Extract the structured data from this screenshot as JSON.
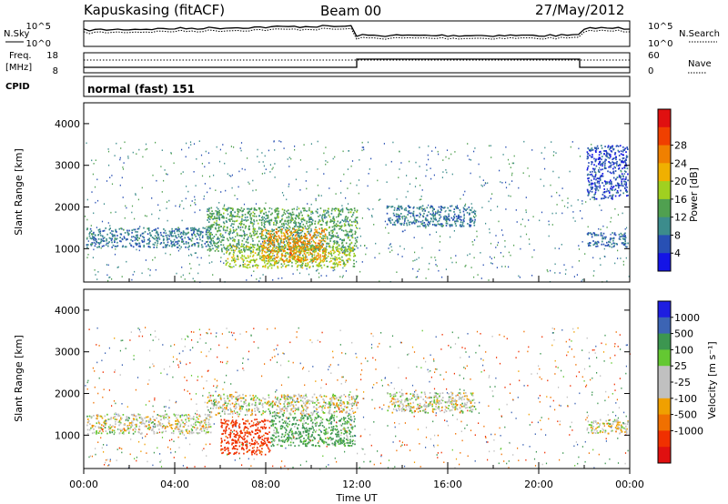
{
  "header": {
    "station": "Kapuskasing (fitACF)",
    "beam": "Beam 00",
    "date": "27/May/2012"
  },
  "summary": {
    "nsky_label": "N.Sky",
    "nsearch_label": "N.Search",
    "freq_label_line1": "Freq.",
    "freq_label_line2": "[MHz]",
    "nave_label": "Nave",
    "cpid_label": "CPID",
    "cpid_text": "normal (fast) 151",
    "noise_ticks_left": [
      "10^5",
      "10^0"
    ],
    "noise_ticks_right": [
      "10^5",
      "10^0"
    ],
    "freq_ticks_left": [
      "18",
      "8"
    ],
    "freq_ticks_right": [
      "60",
      "0"
    ]
  },
  "chart_data": [
    {
      "type": "heatmap",
      "panel": "power",
      "ylabel": "Slant Range [km]",
      "ylim": [
        200,
        4500
      ],
      "yticks": [
        "1000",
        "2000",
        "3000",
        "4000"
      ],
      "colorbar": {
        "label": "Power [dB]",
        "ticks": [
          "4",
          "8",
          "12",
          "16",
          "20",
          "24",
          "28"
        ],
        "colors": [
          "#1414e6",
          "#2850b4",
          "#3c8c8c",
          "#50a050",
          "#a0d020",
          "#f0b000",
          "#f08000",
          "#f04000",
          "#e01010"
        ]
      },
      "x": [
        0,
        24
      ],
      "regions": [
        {
          "t0": 0.1,
          "t1": 5.6,
          "r0": 1050,
          "r1": 1520,
          "level": 6
        },
        {
          "t0": 5.4,
          "t1": 12.0,
          "r0": 950,
          "r1": 2000,
          "level": 10
        },
        {
          "t0": 6.2,
          "t1": 11.9,
          "r0": 550,
          "r1": 1100,
          "level": 14
        },
        {
          "t0": 7.8,
          "t1": 10.6,
          "r0": 700,
          "r1": 1500,
          "level": 20
        },
        {
          "t0": 13.3,
          "t1": 17.2,
          "r0": 1550,
          "r1": 2050,
          "level": 6
        },
        {
          "t0": 22.1,
          "t1": 23.9,
          "r0": 1050,
          "r1": 1400,
          "level": 5
        },
        {
          "t0": 22.1,
          "t1": 23.9,
          "r0": 2200,
          "r1": 3500,
          "level": 3
        }
      ]
    },
    {
      "type": "heatmap",
      "panel": "velocity",
      "xlabel": "Time UT",
      "ylabel": "Slant Range [km]",
      "ylim": [
        200,
        4500
      ],
      "yticks": [
        "1000",
        "2000",
        "3000",
        "4000"
      ],
      "xticks": [
        "00:00",
        "04:00",
        "08:00",
        "12:00",
        "16:00",
        "20:00",
        "00:00"
      ],
      "colorbar": {
        "label": "Velocity [m s⁻¹]",
        "ticks": [
          "1000",
          "500",
          "100",
          "25",
          "-25",
          "-100",
          "-500",
          "-1000"
        ],
        "colors": [
          "#1e1ee0",
          "#3c64b4",
          "#3c9650",
          "#64c832",
          "#c0c0c0",
          "#c0c0c0",
          "#f0a000",
          "#f07000",
          "#f03000",
          "#e01010"
        ]
      },
      "x": [
        0,
        24
      ],
      "regions": [
        {
          "t0": 0.1,
          "t1": 5.6,
          "r0": 1050,
          "r1": 1520,
          "level": 0
        },
        {
          "t0": 5.4,
          "t1": 12.0,
          "r0": 1500,
          "r1": 2000,
          "level": 0
        },
        {
          "t0": 6.0,
          "t1": 8.2,
          "r0": 550,
          "r1": 1400,
          "level": -400
        },
        {
          "t0": 8.2,
          "t1": 11.9,
          "r0": 750,
          "r1": 1500,
          "level": 150
        },
        {
          "t0": 13.3,
          "t1": 17.2,
          "r0": 1550,
          "r1": 2050,
          "level": 0
        },
        {
          "t0": 22.1,
          "t1": 23.9,
          "r0": 1050,
          "r1": 1400,
          "level": 0
        }
      ]
    }
  ]
}
